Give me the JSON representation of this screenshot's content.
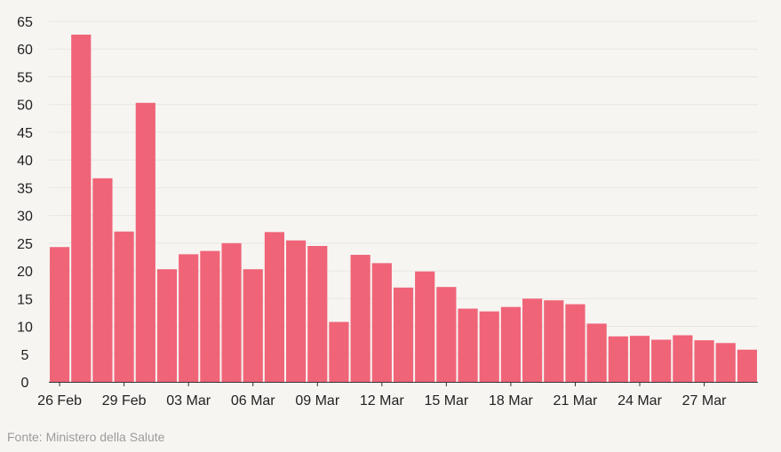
{
  "chart_data": {
    "type": "bar",
    "title": "",
    "xlabel": "",
    "ylabel": "",
    "ylim": [
      0,
      65
    ],
    "y_ticks": [
      0,
      5,
      10,
      15,
      20,
      25,
      30,
      35,
      40,
      45,
      50,
      55,
      60,
      65
    ],
    "grid": true,
    "bar_color": "#f06478",
    "categories": [
      "26 Feb",
      "27 Feb",
      "28 Feb",
      "29 Feb",
      "01 Mar",
      "02 Mar",
      "03 Mar",
      "04 Mar",
      "05 Mar",
      "06 Mar",
      "07 Mar",
      "08 Mar",
      "09 Mar",
      "10 Mar",
      "11 Mar",
      "12 Mar",
      "13 Mar",
      "14 Mar",
      "15 Mar",
      "16 Mar",
      "17 Mar",
      "18 Mar",
      "19 Mar",
      "20 Mar",
      "21 Mar",
      "22 Mar",
      "23 Mar",
      "24 Mar",
      "25 Mar",
      "26 Mar",
      "27 Mar",
      "28 Mar",
      "29 Mar"
    ],
    "x_tick_labels": [
      "26 Feb",
      "29 Feb",
      "03 Mar",
      "06 Mar",
      "09 Mar",
      "12 Mar",
      "15 Mar",
      "18 Mar",
      "21 Mar",
      "24 Mar",
      "27 Mar"
    ],
    "values": [
      24.3,
      62.6,
      36.7,
      27.1,
      50.3,
      20.3,
      23.0,
      23.6,
      25.0,
      20.3,
      27.0,
      25.5,
      24.5,
      10.8,
      22.9,
      21.4,
      17.0,
      19.9,
      17.1,
      13.2,
      12.7,
      13.5,
      15.0,
      14.7,
      14.0,
      10.5,
      8.2,
      8.3,
      7.6,
      8.4,
      7.5,
      7.0,
      5.8
    ]
  },
  "source_text": "Fonte: Ministero della Salute"
}
